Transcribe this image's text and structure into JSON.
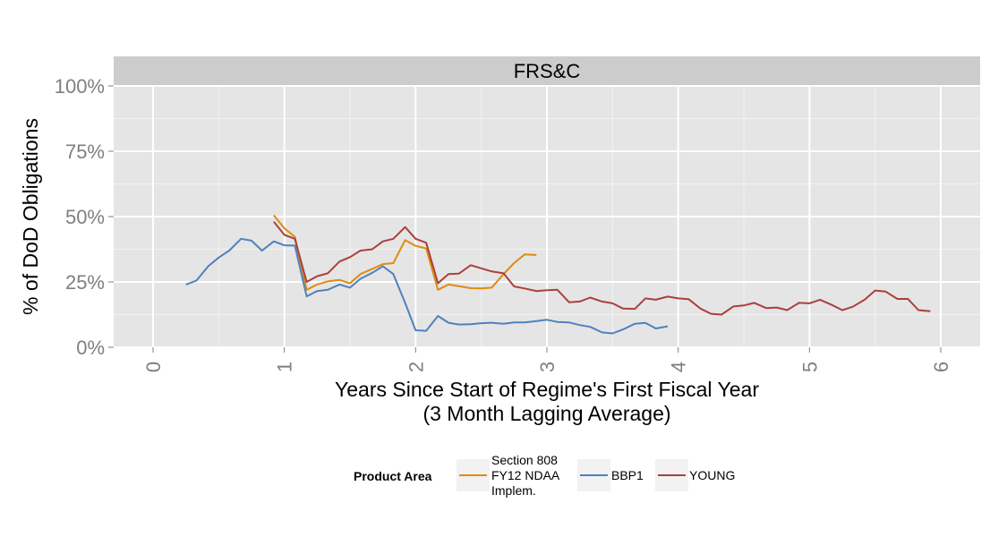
{
  "chart_data": {
    "type": "line",
    "facet_label": "FRS&C",
    "xlabel_line1": "Years Since Start of Regime's First Fiscal Year",
    "xlabel_line2": "(3 Month Lagging Average)",
    "ylabel": "% of DoD Obligations",
    "xlim": [
      -0.3,
      6.3
    ],
    "ylim": [
      0,
      1
    ],
    "x_ticks": [
      0,
      1,
      2,
      3,
      4,
      5,
      6
    ],
    "x_tick_labels": [
      "0",
      "1",
      "2",
      "3",
      "4",
      "5",
      "6"
    ],
    "y_ticks": [
      0,
      0.25,
      0.5,
      0.75,
      1.0
    ],
    "y_tick_labels": [
      "0%",
      "25%",
      "50%",
      "75%",
      "100%"
    ],
    "legend": {
      "title": "Product Area",
      "position": "bottom",
      "entries": [
        {
          "label_lines": [
            "Section 808",
            "FY12 NDAA",
            "Implem."
          ],
          "color": "#E08B10"
        },
        {
          "label_lines": [
            "BBP1"
          ],
          "color": "#4F81BD"
        },
        {
          "label_lines": [
            "YOUNG"
          ],
          "color": "#A9413D"
        }
      ]
    },
    "series": [
      {
        "name": "Section 808 FY12 NDAA Implem.",
        "color": "#E08B10",
        "points": [
          [
            0.92,
            0.505
          ],
          [
            1.0,
            0.455
          ],
          [
            1.08,
            0.423
          ],
          [
            1.17,
            0.22
          ],
          [
            1.25,
            0.24
          ],
          [
            1.33,
            0.252
          ],
          [
            1.42,
            0.258
          ],
          [
            1.5,
            0.245
          ],
          [
            1.58,
            0.28
          ],
          [
            1.67,
            0.3
          ],
          [
            1.75,
            0.318
          ],
          [
            1.83,
            0.322
          ],
          [
            1.92,
            0.41
          ],
          [
            2.0,
            0.388
          ],
          [
            2.08,
            0.378
          ],
          [
            2.17,
            0.22
          ],
          [
            2.25,
            0.24
          ],
          [
            2.33,
            0.234
          ],
          [
            2.42,
            0.226
          ],
          [
            2.5,
            0.225
          ],
          [
            2.58,
            0.228
          ],
          [
            2.67,
            0.28
          ],
          [
            2.75,
            0.322
          ],
          [
            2.83,
            0.355
          ],
          [
            2.92,
            0.353
          ]
        ]
      },
      {
        "name": "BBP1",
        "color": "#4F81BD",
        "points": [
          [
            0.25,
            0.24
          ],
          [
            0.33,
            0.255
          ],
          [
            0.42,
            0.31
          ],
          [
            0.5,
            0.343
          ],
          [
            0.58,
            0.37
          ],
          [
            0.67,
            0.415
          ],
          [
            0.75,
            0.408
          ],
          [
            0.83,
            0.37
          ],
          [
            0.92,
            0.405
          ],
          [
            1.0,
            0.39
          ],
          [
            1.08,
            0.389
          ],
          [
            1.17,
            0.195
          ],
          [
            1.25,
            0.215
          ],
          [
            1.33,
            0.22
          ],
          [
            1.42,
            0.24
          ],
          [
            1.5,
            0.228
          ],
          [
            1.58,
            0.262
          ],
          [
            1.67,
            0.285
          ],
          [
            1.75,
            0.31
          ],
          [
            1.83,
            0.28
          ],
          [
            1.92,
            0.17
          ],
          [
            2.0,
            0.065
          ],
          [
            2.08,
            0.063
          ],
          [
            2.17,
            0.12
          ],
          [
            2.25,
            0.094
          ],
          [
            2.33,
            0.087
          ],
          [
            2.42,
            0.088
          ],
          [
            2.5,
            0.092
          ],
          [
            2.58,
            0.094
          ],
          [
            2.67,
            0.09
          ],
          [
            2.75,
            0.095
          ],
          [
            2.83,
            0.095
          ],
          [
            2.92,
            0.1
          ],
          [
            3.0,
            0.105
          ],
          [
            3.08,
            0.097
          ],
          [
            3.17,
            0.095
          ],
          [
            3.25,
            0.085
          ],
          [
            3.33,
            0.078
          ],
          [
            3.42,
            0.057
          ],
          [
            3.5,
            0.053
          ],
          [
            3.58,
            0.068
          ],
          [
            3.67,
            0.09
          ],
          [
            3.75,
            0.093
          ],
          [
            3.83,
            0.072
          ],
          [
            3.92,
            0.08
          ]
        ]
      },
      {
        "name": "YOUNG",
        "color": "#A9413D",
        "points": [
          [
            0.92,
            0.48
          ],
          [
            1.0,
            0.43
          ],
          [
            1.08,
            0.415
          ],
          [
            1.17,
            0.25
          ],
          [
            1.25,
            0.272
          ],
          [
            1.33,
            0.283
          ],
          [
            1.42,
            0.328
          ],
          [
            1.5,
            0.345
          ],
          [
            1.58,
            0.37
          ],
          [
            1.67,
            0.375
          ],
          [
            1.75,
            0.405
          ],
          [
            1.83,
            0.415
          ],
          [
            1.92,
            0.46
          ],
          [
            2.0,
            0.415
          ],
          [
            2.08,
            0.4
          ],
          [
            2.17,
            0.245
          ],
          [
            2.25,
            0.28
          ],
          [
            2.33,
            0.282
          ],
          [
            2.42,
            0.314
          ],
          [
            2.5,
            0.302
          ],
          [
            2.58,
            0.29
          ],
          [
            2.67,
            0.283
          ],
          [
            2.75,
            0.233
          ],
          [
            2.83,
            0.225
          ],
          [
            2.92,
            0.215
          ],
          [
            3.0,
            0.218
          ],
          [
            3.08,
            0.22
          ],
          [
            3.17,
            0.172
          ],
          [
            3.25,
            0.175
          ],
          [
            3.33,
            0.19
          ],
          [
            3.42,
            0.175
          ],
          [
            3.5,
            0.168
          ],
          [
            3.58,
            0.148
          ],
          [
            3.67,
            0.147
          ],
          [
            3.75,
            0.187
          ],
          [
            3.83,
            0.182
          ],
          [
            3.92,
            0.194
          ],
          [
            4.0,
            0.187
          ],
          [
            4.08,
            0.184
          ],
          [
            4.17,
            0.148
          ],
          [
            4.25,
            0.128
          ],
          [
            4.33,
            0.125
          ],
          [
            4.42,
            0.156
          ],
          [
            4.5,
            0.16
          ],
          [
            4.58,
            0.17
          ],
          [
            4.67,
            0.15
          ],
          [
            4.75,
            0.152
          ],
          [
            4.83,
            0.142
          ],
          [
            4.92,
            0.17
          ],
          [
            5.0,
            0.168
          ],
          [
            5.08,
            0.182
          ],
          [
            5.17,
            0.162
          ],
          [
            5.25,
            0.142
          ],
          [
            5.33,
            0.155
          ],
          [
            5.42,
            0.182
          ],
          [
            5.5,
            0.217
          ],
          [
            5.58,
            0.213
          ],
          [
            5.67,
            0.185
          ],
          [
            5.75,
            0.185
          ],
          [
            5.83,
            0.142
          ],
          [
            5.92,
            0.138
          ]
        ]
      }
    ]
  }
}
